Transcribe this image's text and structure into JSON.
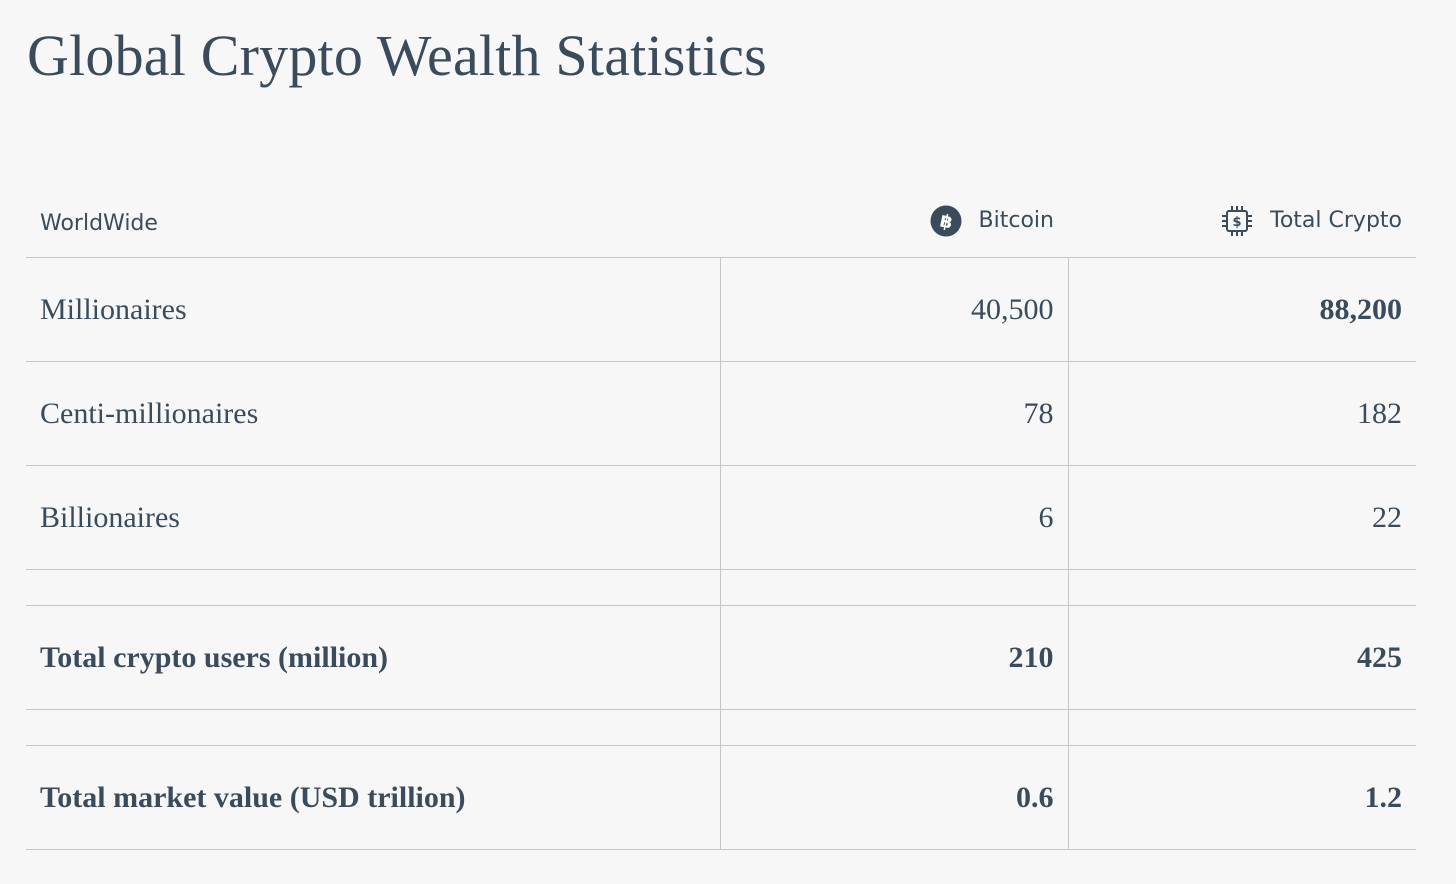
{
  "title": "Global Crypto Wealth Statistics",
  "table": {
    "headers": {
      "label": "WorldWide",
      "bitcoin": "Bitcoin",
      "total_crypto": "Total Crypto"
    },
    "icons": {
      "bitcoin": "bitcoin-icon",
      "total_crypto": "crypto-chip-icon"
    },
    "rows": [
      {
        "label": "Millionaires",
        "bitcoin": "40,500",
        "total_crypto": "88,200"
      },
      {
        "label": "Centi-millionaires",
        "bitcoin": "78",
        "total_crypto": "182"
      },
      {
        "label": "Billionaires",
        "bitcoin": "6",
        "total_crypto": "22"
      }
    ],
    "totals": [
      {
        "label": "Total crypto users (million)",
        "bitcoin": "210",
        "total_crypto": "425"
      },
      {
        "label": "Total market value (USD trillion)",
        "bitcoin": "0.6",
        "total_crypto": "1.2"
      }
    ]
  },
  "colors": {
    "text": "#3a4b5c",
    "background": "#f7f7f7",
    "rule": "#c6c6c6"
  }
}
